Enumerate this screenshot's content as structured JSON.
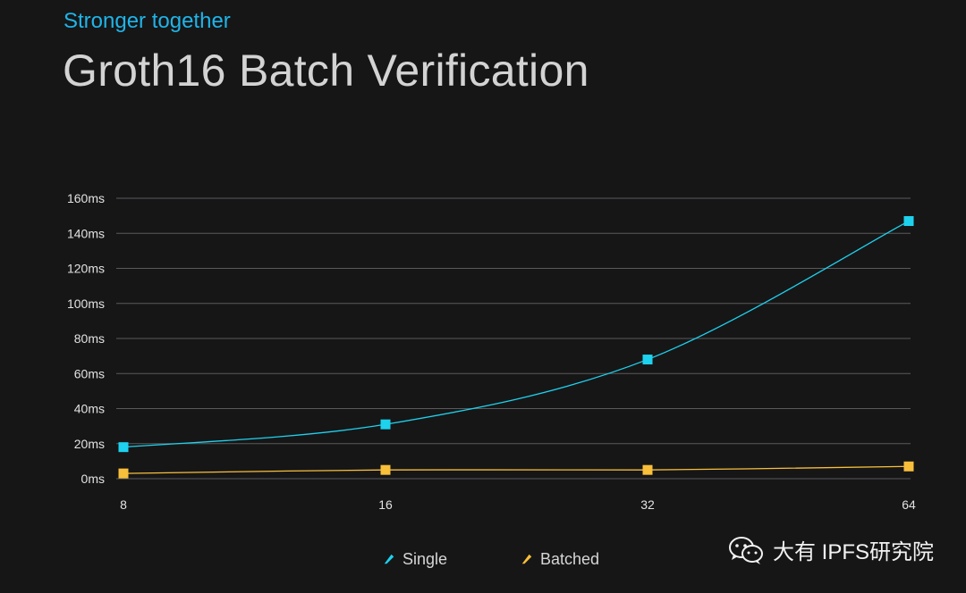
{
  "header": {
    "subtitle": "Stronger together",
    "title": "Groth16 Batch Verification"
  },
  "watermark": {
    "text": "大有 IPFS研究院",
    "icon": "wechat-icon"
  },
  "chart_data": {
    "type": "line",
    "title": "Groth16 Batch Verification",
    "subtitle": "Stronger together",
    "xlabel": "",
    "ylabel": "",
    "categories": [
      "8",
      "16",
      "32",
      "64"
    ],
    "y_ticks": [
      "0ms",
      "20ms",
      "40ms",
      "60ms",
      "80ms",
      "100ms",
      "120ms",
      "140ms",
      "160ms"
    ],
    "ylim": [
      0,
      160
    ],
    "grid": true,
    "legend_position": "bottom",
    "series": [
      {
        "name": "Single",
        "color": "#1ed2ee",
        "values": [
          18,
          31,
          68,
          147
        ]
      },
      {
        "name": "Batched",
        "color": "#f8bf3a",
        "values": [
          3,
          5,
          5,
          7
        ]
      }
    ]
  }
}
